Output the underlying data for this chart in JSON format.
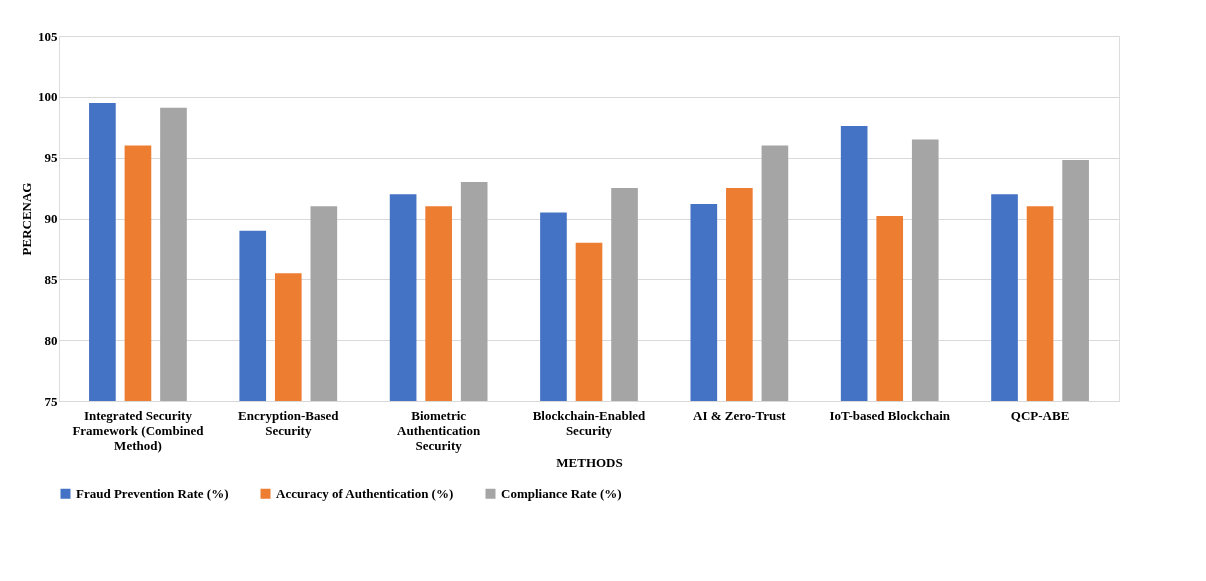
{
  "chart_data": {
    "type": "bar",
    "xlabel": "METHODS",
    "ylabel": "PERCENAG",
    "categories": [
      "Integrated Security Framework (Combined Method)",
      "Encryption-Based Security",
      "Biometric Authentication Security",
      "Blockchain-Enabled Security",
      "AI & Zero-Trust",
      "IoT-based Blockchain",
      "QCP-ABE"
    ],
    "series": [
      {
        "name": "Fraud Prevention Rate (%)",
        "color": "#4472c4",
        "values": [
          99.5,
          89.0,
          92.0,
          90.5,
          91.2,
          97.6,
          92.0
        ]
      },
      {
        "name": "Accuracy of Authentication (%)",
        "color": "#ed7d31",
        "values": [
          96.0,
          85.5,
          91.0,
          88.0,
          92.5,
          90.2,
          91.0
        ]
      },
      {
        "name": "Compliance Rate (%)",
        "color": "#a5a5a5",
        "values": [
          99.1,
          91.0,
          93.0,
          92.5,
          96.0,
          96.5,
          94.8
        ]
      }
    ],
    "ylim": [
      75,
      105
    ],
    "yticks": [
      75,
      80,
      85,
      90,
      95,
      100,
      105
    ],
    "grid": "y",
    "legend": "bottom"
  }
}
